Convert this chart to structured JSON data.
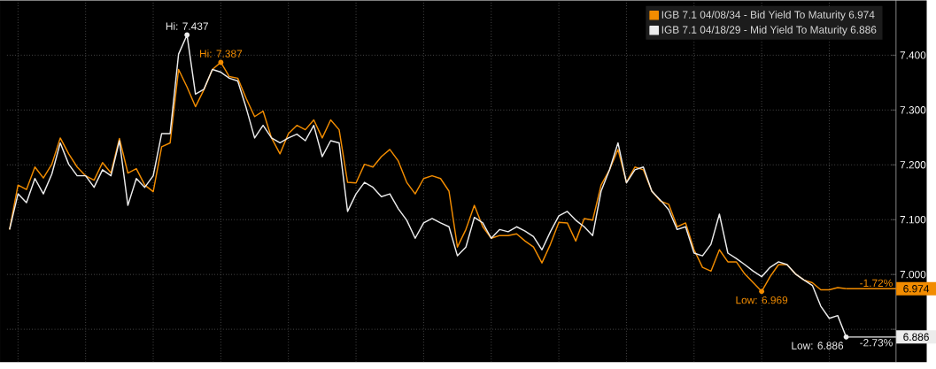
{
  "chart_data": {
    "type": "line",
    "categories": [
      null,
      null,
      null,
      null,
      null,
      null,
      null,
      null,
      null,
      null,
      null,
      null,
      null,
      null,
      null,
      null,
      null,
      null,
      null,
      null,
      null,
      null,
      null,
      null,
      null,
      null,
      null,
      null,
      null,
      null,
      null,
      null,
      null,
      null,
      null,
      null,
      null,
      null,
      null,
      null,
      null,
      null,
      null,
      null,
      null,
      null,
      null,
      null,
      null,
      null,
      null,
      null,
      null,
      null,
      null,
      null,
      null,
      null,
      null,
      null,
      null,
      null,
      null,
      null,
      null,
      null,
      null,
      null,
      null,
      null,
      null,
      null,
      null,
      null,
      null,
      null,
      null,
      null,
      null,
      null,
      null,
      null,
      null,
      null,
      null,
      null,
      null,
      null,
      null,
      null,
      null,
      null,
      null,
      null,
      null,
      null,
      null,
      null,
      null,
      null
    ],
    "series": [
      {
        "name": "IGB 7.1 04/08/34 - Bid Yield To Maturity 6.974",
        "color": "#f28c00",
        "values": [
          7.082,
          7.163,
          7.155,
          7.196,
          7.176,
          7.201,
          7.249,
          7.22,
          7.196,
          7.18,
          7.172,
          7.204,
          7.185,
          7.248,
          7.185,
          7.193,
          7.163,
          7.151,
          7.233,
          7.24,
          7.374,
          7.342,
          7.306,
          7.337,
          7.374,
          7.387,
          7.361,
          7.358,
          7.321,
          7.288,
          7.298,
          7.249,
          7.22,
          7.257,
          7.272,
          7.264,
          7.282,
          7.249,
          7.282,
          7.264,
          7.168,
          7.167,
          7.201,
          7.196,
          7.215,
          7.228,
          7.207,
          7.168,
          7.147,
          7.175,
          7.18,
          7.175,
          7.152,
          7.05,
          7.082,
          7.126,
          7.087,
          7.066,
          7.071,
          7.071,
          7.074,
          7.061,
          7.05,
          7.021,
          7.055,
          7.095,
          7.094,
          7.061,
          7.102,
          7.099,
          7.163,
          7.191,
          7.228,
          7.168,
          7.196,
          7.191,
          7.152,
          7.134,
          7.128,
          7.087,
          7.094,
          7.045,
          7.013,
          7.006,
          7.045,
          7.023,
          7.023,
          7.001,
          6.985,
          6.969,
          6.996,
          7.018,
          7.018,
          7.001,
          6.99,
          6.985,
          6.972,
          6.972,
          6.976,
          6.974
        ],
        "value_labels": [
          null,
          null,
          null,
          null,
          null,
          null,
          null,
          null,
          null,
          null,
          null,
          null,
          null,
          null,
          null,
          null,
          null,
          null,
          null,
          null,
          null,
          null,
          null,
          null,
          null,
          "Hi: 7.387",
          null,
          null,
          null,
          null,
          null,
          null,
          null,
          null,
          null,
          null,
          null,
          null,
          null,
          null,
          null,
          null,
          null,
          null,
          null,
          null,
          null,
          null,
          null,
          null,
          null,
          null,
          null,
          null,
          null,
          null,
          null,
          null,
          null,
          null,
          null,
          null,
          null,
          null,
          null,
          null,
          null,
          null,
          null,
          null,
          null,
          null,
          null,
          null,
          null,
          null,
          null,
          null,
          null,
          null,
          null,
          null,
          null,
          null,
          null,
          null,
          null,
          null,
          null,
          "Low: 6.969",
          null,
          null,
          null,
          null,
          null,
          null,
          null,
          null,
          null,
          null
        ]
      },
      {
        "name": "IGB 7.1 04/18/29 - Mid Yield To Maturity 6.886",
        "color": "#ececec",
        "values": [
          7.082,
          7.147,
          7.131,
          7.175,
          7.147,
          7.183,
          7.24,
          7.201,
          7.18,
          7.18,
          7.159,
          7.191,
          7.18,
          7.244,
          7.126,
          7.175,
          7.159,
          7.18,
          7.257,
          7.257,
          7.402,
          7.437,
          7.329,
          7.338,
          7.374,
          7.369,
          7.358,
          7.353,
          7.304,
          7.249,
          7.272,
          7.249,
          7.24,
          7.249,
          7.256,
          7.244,
          7.272,
          7.215,
          7.244,
          7.24,
          7.115,
          7.147,
          7.168,
          7.159,
          7.142,
          7.147,
          7.12,
          7.099,
          7.066,
          7.094,
          7.102,
          7.094,
          7.087,
          7.034,
          7.05,
          7.104,
          7.094,
          7.066,
          7.082,
          7.078,
          7.087,
          7.079,
          7.069,
          7.045,
          7.078,
          7.107,
          7.115,
          7.099,
          7.087,
          7.071,
          7.152,
          7.191,
          7.24,
          7.167,
          7.191,
          7.196,
          7.152,
          7.136,
          7.118,
          7.082,
          7.087,
          7.039,
          7.034,
          7.055,
          7.11,
          7.039,
          7.029,
          7.018,
          7.006,
          6.996,
          7.013,
          7.023,
          7.018,
          7.001,
          6.99,
          6.98,
          6.942,
          6.92,
          6.925,
          6.886
        ],
        "value_labels": [
          null,
          null,
          null,
          null,
          null,
          null,
          null,
          null,
          null,
          null,
          null,
          null,
          null,
          null,
          null,
          null,
          null,
          null,
          null,
          null,
          null,
          "Hi: 7.437",
          null,
          null,
          null,
          null,
          null,
          null,
          null,
          null,
          null,
          null,
          null,
          null,
          null,
          null,
          null,
          null,
          null,
          null,
          null,
          null,
          null,
          null,
          null,
          null,
          null,
          null,
          null,
          null,
          null,
          null,
          null,
          null,
          null,
          null,
          null,
          null,
          null,
          null,
          null,
          null,
          null,
          null,
          null,
          null,
          null,
          null,
          null,
          null,
          null,
          null,
          null,
          null,
          null,
          null,
          null,
          null,
          null,
          null,
          null,
          null,
          null,
          null,
          null,
          null,
          null,
          null,
          null,
          null,
          null,
          null,
          null,
          null,
          null,
          null,
          null,
          null,
          null,
          "Low: 6.886"
        ]
      }
    ],
    "ylim": [
      6.84,
      7.5
    ],
    "yticks": [
      {
        "value": 6.9,
        "label": null
      },
      {
        "value": 7.0,
        "label": "7.000"
      },
      {
        "value": 7.1,
        "label": "7.100"
      },
      {
        "value": 7.2,
        "label": "7.200"
      },
      {
        "value": 7.3,
        "label": "7.300"
      },
      {
        "value": 7.4,
        "label": "7.400"
      }
    ],
    "annotations": [
      "6.974",
      "6.886",
      "-1.72%",
      "-2.73%"
    ],
    "grid": true,
    "legend": "top right"
  }
}
